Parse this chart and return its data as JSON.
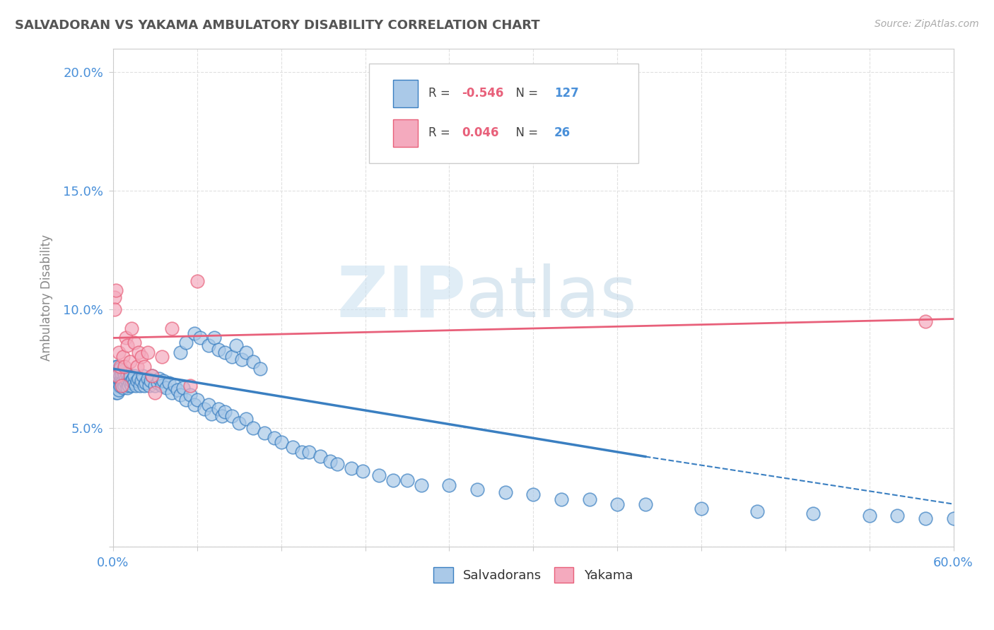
{
  "title": "SALVADORAN VS YAKAMA AMBULATORY DISABILITY CORRELATION CHART",
  "source": "Source: ZipAtlas.com",
  "ylabel": "Ambulatory Disability",
  "xlim": [
    0.0,
    0.6
  ],
  "ylim": [
    0.0,
    0.21
  ],
  "xticks": [
    0.0,
    0.06,
    0.12,
    0.18,
    0.24,
    0.3,
    0.36,
    0.42,
    0.48,
    0.54,
    0.6
  ],
  "xticklabels": [
    "0.0%",
    "",
    "",
    "",
    "",
    "",
    "",
    "",
    "",
    "",
    "60.0%"
  ],
  "yticks": [
    0.0,
    0.05,
    0.1,
    0.15,
    0.2
  ],
  "yticklabels": [
    "",
    "5.0%",
    "10.0%",
    "15.0%",
    "20.0%"
  ],
  "salvadoran_R": -0.546,
  "salvadoran_N": 127,
  "yakama_R": 0.046,
  "yakama_N": 26,
  "salvadoran_color": "#aac9e8",
  "yakama_color": "#f4aabe",
  "salvadoran_line_color": "#3a7fc1",
  "yakama_line_color": "#e8607a",
  "background_color": "#ffffff",
  "plot_bg_color": "#ffffff",
  "watermark_zip": "ZIP",
  "watermark_atlas": "atlas",
  "grid_color": "#e0e0e0",
  "title_color": "#555555",
  "axis_label_color": "#888888",
  "tick_label_color": "#4a90d9",
  "sal_line_solid_end": 0.38,
  "yakama_line_start": 0.0,
  "yakama_line_end": 0.6,
  "yakama_line_y_start": 0.088,
  "yakama_line_y_end": 0.096,
  "sal_line_y_at0": 0.075,
  "sal_line_y_at_solid_end": 0.038,
  "sal_line_y_at_xlim_end": 0.018,
  "salvadoran_x": [
    0.001,
    0.001,
    0.001,
    0.002,
    0.002,
    0.002,
    0.002,
    0.002,
    0.003,
    0.003,
    0.003,
    0.003,
    0.003,
    0.003,
    0.003,
    0.004,
    0.004,
    0.004,
    0.004,
    0.005,
    0.005,
    0.005,
    0.005,
    0.006,
    0.006,
    0.006,
    0.007,
    0.007,
    0.007,
    0.008,
    0.008,
    0.009,
    0.009,
    0.01,
    0.01,
    0.01,
    0.011,
    0.011,
    0.012,
    0.012,
    0.013,
    0.013,
    0.014,
    0.015,
    0.015,
    0.016,
    0.017,
    0.018,
    0.019,
    0.02,
    0.021,
    0.022,
    0.023,
    0.025,
    0.026,
    0.027,
    0.028,
    0.03,
    0.032,
    0.033,
    0.035,
    0.036,
    0.038,
    0.04,
    0.042,
    0.044,
    0.046,
    0.048,
    0.05,
    0.052,
    0.055,
    0.058,
    0.06,
    0.065,
    0.068,
    0.07,
    0.075,
    0.078,
    0.08,
    0.085,
    0.09,
    0.095,
    0.1,
    0.108,
    0.115,
    0.12,
    0.128,
    0.135,
    0.14,
    0.148,
    0.155,
    0.16,
    0.17,
    0.178,
    0.19,
    0.2,
    0.21,
    0.22,
    0.24,
    0.26,
    0.28,
    0.3,
    0.32,
    0.34,
    0.36,
    0.38,
    0.42,
    0.46,
    0.5,
    0.54,
    0.56,
    0.58,
    0.6,
    0.048,
    0.052,
    0.058,
    0.062,
    0.068,
    0.072,
    0.075,
    0.08,
    0.085,
    0.088,
    0.092,
    0.095,
    0.1,
    0.105
  ],
  "salvadoran_y": [
    0.072,
    0.069,
    0.074,
    0.071,
    0.068,
    0.073,
    0.076,
    0.065,
    0.07,
    0.072,
    0.068,
    0.074,
    0.076,
    0.065,
    0.069,
    0.071,
    0.068,
    0.073,
    0.066,
    0.07,
    0.072,
    0.075,
    0.068,
    0.071,
    0.069,
    0.073,
    0.07,
    0.067,
    0.074,
    0.068,
    0.072,
    0.069,
    0.071,
    0.07,
    0.067,
    0.073,
    0.068,
    0.071,
    0.069,
    0.072,
    0.068,
    0.07,
    0.071,
    0.069,
    0.072,
    0.068,
    0.07,
    0.071,
    0.068,
    0.07,
    0.072,
    0.068,
    0.069,
    0.071,
    0.068,
    0.07,
    0.072,
    0.068,
    0.069,
    0.071,
    0.068,
    0.07,
    0.067,
    0.069,
    0.065,
    0.068,
    0.066,
    0.064,
    0.067,
    0.062,
    0.064,
    0.06,
    0.062,
    0.058,
    0.06,
    0.056,
    0.058,
    0.055,
    0.057,
    0.055,
    0.052,
    0.054,
    0.05,
    0.048,
    0.046,
    0.044,
    0.042,
    0.04,
    0.04,
    0.038,
    0.036,
    0.035,
    0.033,
    0.032,
    0.03,
    0.028,
    0.028,
    0.026,
    0.026,
    0.024,
    0.023,
    0.022,
    0.02,
    0.02,
    0.018,
    0.018,
    0.016,
    0.015,
    0.014,
    0.013,
    0.013,
    0.012,
    0.012,
    0.082,
    0.086,
    0.09,
    0.088,
    0.085,
    0.088,
    0.083,
    0.082,
    0.08,
    0.085,
    0.079,
    0.082,
    0.078,
    0.075
  ],
  "yakama_x": [
    0.001,
    0.001,
    0.002,
    0.003,
    0.004,
    0.005,
    0.006,
    0.007,
    0.008,
    0.009,
    0.01,
    0.012,
    0.013,
    0.015,
    0.017,
    0.018,
    0.02,
    0.022,
    0.025,
    0.028,
    0.03,
    0.035,
    0.042,
    0.06,
    0.58,
    0.055
  ],
  "yakama_y": [
    0.105,
    0.1,
    0.108,
    0.072,
    0.082,
    0.076,
    0.068,
    0.08,
    0.076,
    0.088,
    0.085,
    0.078,
    0.092,
    0.086,
    0.076,
    0.082,
    0.08,
    0.076,
    0.082,
    0.072,
    0.065,
    0.08,
    0.092,
    0.112,
    0.095,
    0.068
  ]
}
